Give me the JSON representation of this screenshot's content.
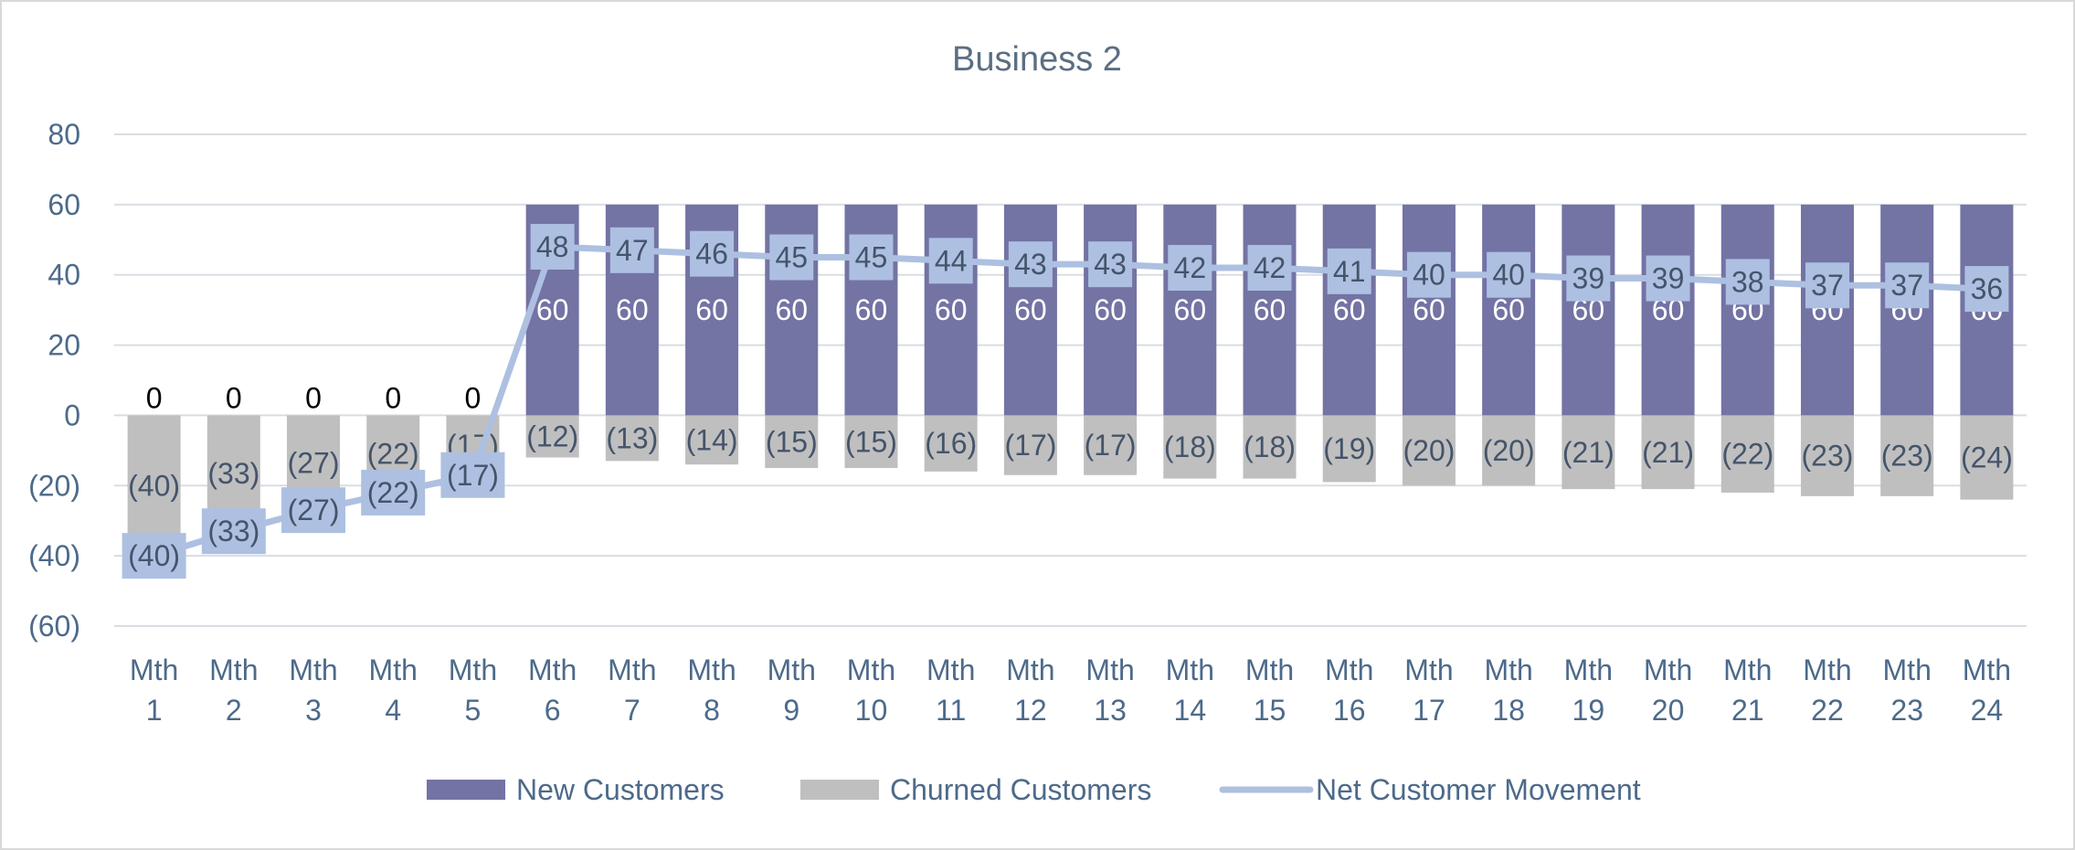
{
  "chart_data": {
    "type": "bar",
    "title": "Business 2",
    "xlabel": "",
    "ylabel": "",
    "ylim": [
      -60,
      80
    ],
    "yticks": [
      80,
      60,
      40,
      20,
      0,
      -20,
      -40,
      -60
    ],
    "ytick_labels": [
      "80",
      "60",
      "40",
      "20",
      "0",
      "(20)",
      "(40)",
      "(60)"
    ],
    "categories": [
      [
        "Mth",
        "1"
      ],
      [
        "Mth",
        "2"
      ],
      [
        "Mth",
        "3"
      ],
      [
        "Mth",
        "4"
      ],
      [
        "Mth",
        "5"
      ],
      [
        "Mth",
        "6"
      ],
      [
        "Mth",
        "7"
      ],
      [
        "Mth",
        "8"
      ],
      [
        "Mth",
        "9"
      ],
      [
        "Mth",
        "10"
      ],
      [
        "Mth",
        "11"
      ],
      [
        "Mth",
        "12"
      ],
      [
        "Mth",
        "13"
      ],
      [
        "Mth",
        "14"
      ],
      [
        "Mth",
        "15"
      ],
      [
        "Mth",
        "16"
      ],
      [
        "Mth",
        "17"
      ],
      [
        "Mth",
        "18"
      ],
      [
        "Mth",
        "19"
      ],
      [
        "Mth",
        "20"
      ],
      [
        "Mth",
        "21"
      ],
      [
        "Mth",
        "22"
      ],
      [
        "Mth",
        "23"
      ],
      [
        "Mth",
        "24"
      ]
    ],
    "series": [
      {
        "name": "New Customers",
        "kind": "bar",
        "color": "#7373a4",
        "values": [
          0,
          0,
          0,
          0,
          0,
          60,
          60,
          60,
          60,
          60,
          60,
          60,
          60,
          60,
          60,
          60,
          60,
          60,
          60,
          60,
          60,
          60,
          60,
          60
        ],
        "labels": [
          "0",
          "0",
          "0",
          "0",
          "0",
          "60",
          "60",
          "60",
          "60",
          "60",
          "60",
          "60",
          "60",
          "60",
          "60",
          "60",
          "60",
          "60",
          "60",
          "60",
          "60",
          "60",
          "60",
          "60"
        ]
      },
      {
        "name": "Churned Customers",
        "kind": "bar",
        "color": "#bfbfbf",
        "values": [
          -40,
          -33,
          -27,
          -22,
          -17,
          -12,
          -13,
          -14,
          -15,
          -15,
          -16,
          -17,
          -17,
          -18,
          -18,
          -19,
          -20,
          -20,
          -21,
          -21,
          -22,
          -23,
          -23,
          -24
        ],
        "labels": [
          "(40)",
          "(33)",
          "(27)",
          "(22)",
          "(17)",
          "(12)",
          "(13)",
          "(14)",
          "(15)",
          "(15)",
          "(16)",
          "(17)",
          "(17)",
          "(18)",
          "(18)",
          "(19)",
          "(20)",
          "(20)",
          "(21)",
          "(21)",
          "(22)",
          "(23)",
          "(23)",
          "(24)"
        ]
      },
      {
        "name": "Net Customer Movement",
        "kind": "line",
        "color": "#adc0e1",
        "values": [
          -40,
          -33,
          -27,
          -22,
          -17,
          48,
          47,
          46,
          45,
          45,
          44,
          43,
          43,
          42,
          42,
          41,
          40,
          40,
          39,
          39,
          38,
          37,
          37,
          36
        ],
        "labels": [
          "(40)",
          "(33)",
          "(27)",
          "(22)",
          "(17)",
          "48",
          "47",
          "46",
          "45",
          "45",
          "44",
          "43",
          "43",
          "42",
          "42",
          "41",
          "40",
          "40",
          "39",
          "39",
          "38",
          "37",
          "37",
          "36"
        ]
      }
    ],
    "legend": {
      "position": "bottom",
      "entries": [
        "New Customers",
        "Churned Customers",
        "Net Customer Movement"
      ]
    }
  }
}
